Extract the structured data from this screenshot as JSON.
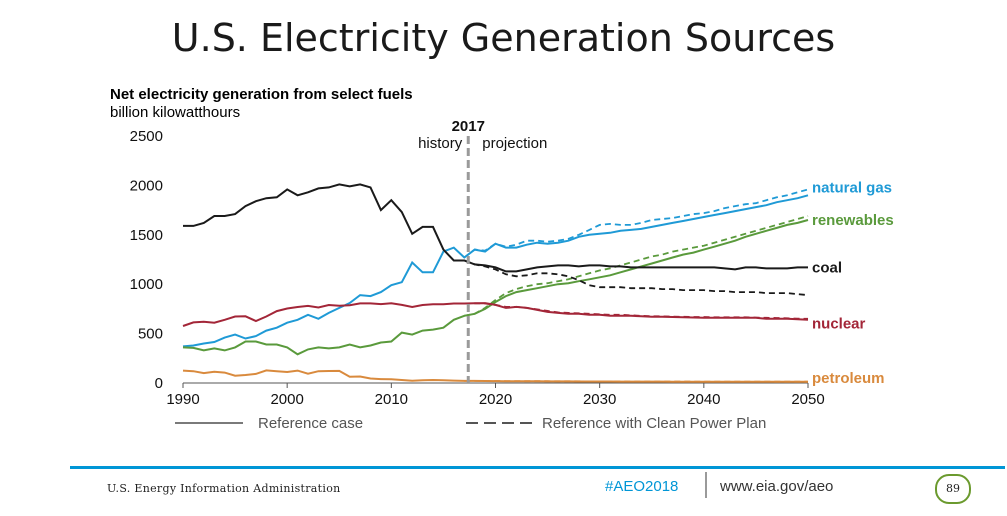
{
  "slide": {
    "title": "U.S. Electricity Generation Sources"
  },
  "footer": {
    "org": "U.S. Energy Information Administration",
    "hashtag": "#AEO2018",
    "url": "www.eia.gov/aeo",
    "page_number": "89",
    "colors": {
      "rule": "#0096d6",
      "badge": "#6b9a2e"
    }
  },
  "chart_data": {
    "type": "line",
    "title": "Net electricity generation from select fuels",
    "ylabel": "billion kilowatthours",
    "xlim": [
      1990,
      2050
    ],
    "ylim": [
      0,
      2500
    ],
    "x_ticks": [
      1990,
      2000,
      2010,
      2020,
      2030,
      2040,
      2050
    ],
    "y_ticks": [
      0,
      500,
      1000,
      1500,
      2000,
      2500
    ],
    "grid": false,
    "divider": {
      "year": 2017,
      "label": "2017",
      "left_label": "history",
      "right_label": "projection"
    },
    "legend": {
      "position": "bottom",
      "entries": [
        {
          "label": "Reference case",
          "style": "solid"
        },
        {
          "label": "Reference with Clean Power Plan",
          "style": "dashed"
        }
      ]
    },
    "series": [
      {
        "name": "natural gas",
        "color": "#1f9ad6",
        "x": [
          1990,
          1991,
          1992,
          1993,
          1994,
          1995,
          1996,
          1997,
          1998,
          1999,
          2000,
          2001,
          2002,
          2003,
          2004,
          2005,
          2006,
          2007,
          2008,
          2009,
          2010,
          2011,
          2012,
          2013,
          2014,
          2015,
          2016,
          2017,
          2018,
          2019,
          2020,
          2021,
          2022,
          2023,
          2024,
          2025,
          2026,
          2027,
          2028,
          2029,
          2030,
          2031,
          2032,
          2033,
          2034,
          2035,
          2036,
          2037,
          2038,
          2039,
          2040,
          2041,
          2042,
          2043,
          2044,
          2045,
          2046,
          2047,
          2048,
          2049,
          2050
        ],
        "reference": [
          370,
          380,
          400,
          415,
          460,
          490,
          450,
          475,
          530,
          560,
          610,
          640,
          690,
          650,
          710,
          760,
          810,
          890,
          880,
          920,
          990,
          1020,
          1220,
          1120,
          1120,
          1330,
          1370,
          1270,
          1350,
          1330,
          1410,
          1370,
          1370,
          1400,
          1420,
          1410,
          1420,
          1440,
          1480,
          1500,
          1510,
          1520,
          1540,
          1550,
          1560,
          1580,
          1600,
          1620,
          1640,
          1660,
          1680,
          1700,
          1720,
          1740,
          1760,
          1780,
          1800,
          1830,
          1850,
          1870,
          1900
        ],
        "clean_power_plan": [
          null,
          null,
          null,
          null,
          null,
          null,
          null,
          null,
          null,
          null,
          null,
          null,
          null,
          null,
          null,
          null,
          null,
          null,
          null,
          null,
          null,
          null,
          null,
          null,
          null,
          null,
          null,
          1270,
          1350,
          1340,
          1410,
          1380,
          1400,
          1440,
          1440,
          1430,
          1440,
          1460,
          1500,
          1550,
          1600,
          1610,
          1600,
          1600,
          1620,
          1650,
          1660,
          1670,
          1690,
          1710,
          1720,
          1740,
          1770,
          1790,
          1810,
          1820,
          1850,
          1880,
          1900,
          1930,
          1960
        ]
      },
      {
        "name": "renewables",
        "color": "#5a9a3c",
        "x": [
          1990,
          1991,
          1992,
          1993,
          1994,
          1995,
          1996,
          1997,
          1998,
          1999,
          2000,
          2001,
          2002,
          2003,
          2004,
          2005,
          2006,
          2007,
          2008,
          2009,
          2010,
          2011,
          2012,
          2013,
          2014,
          2015,
          2016,
          2017,
          2018,
          2019,
          2020,
          2021,
          2022,
          2023,
          2024,
          2025,
          2026,
          2027,
          2028,
          2029,
          2030,
          2031,
          2032,
          2033,
          2034,
          2035,
          2036,
          2037,
          2038,
          2039,
          2040,
          2041,
          2042,
          2043,
          2044,
          2045,
          2046,
          2047,
          2048,
          2049,
          2050
        ],
        "reference": [
          360,
          355,
          330,
          350,
          330,
          360,
          420,
          420,
          390,
          390,
          360,
          290,
          340,
          360,
          350,
          360,
          390,
          360,
          380,
          410,
          420,
          510,
          490,
          530,
          540,
          560,
          640,
          680,
          700,
          750,
          820,
          880,
          920,
          940,
          960,
          980,
          1000,
          1010,
          1030,
          1050,
          1070,
          1090,
          1120,
          1150,
          1180,
          1210,
          1240,
          1270,
          1300,
          1320,
          1350,
          1380,
          1410,
          1440,
          1480,
          1510,
          1540,
          1570,
          1600,
          1620,
          1650
        ],
        "clean_power_plan": [
          null,
          null,
          null,
          null,
          null,
          null,
          null,
          null,
          null,
          null,
          null,
          null,
          null,
          null,
          null,
          null,
          null,
          null,
          null,
          null,
          null,
          null,
          null,
          null,
          null,
          null,
          null,
          680,
          700,
          760,
          840,
          910,
          950,
          980,
          1000,
          1010,
          1030,
          1050,
          1080,
          1110,
          1140,
          1160,
          1190,
          1220,
          1250,
          1280,
          1300,
          1330,
          1350,
          1370,
          1390,
          1420,
          1450,
          1480,
          1510,
          1540,
          1570,
          1600,
          1630,
          1660,
          1690
        ]
      },
      {
        "name": "coal",
        "color": "#1a1a1a",
        "x": [
          1990,
          1991,
          1992,
          1993,
          1994,
          1995,
          1996,
          1997,
          1998,
          1999,
          2000,
          2001,
          2002,
          2003,
          2004,
          2005,
          2006,
          2007,
          2008,
          2009,
          2010,
          2011,
          2012,
          2013,
          2014,
          2015,
          2016,
          2017,
          2018,
          2019,
          2020,
          2021,
          2022,
          2023,
          2024,
          2025,
          2026,
          2027,
          2028,
          2029,
          2030,
          2031,
          2032,
          2033,
          2034,
          2035,
          2036,
          2037,
          2038,
          2039,
          2040,
          2041,
          2042,
          2043,
          2044,
          2045,
          2046,
          2047,
          2048,
          2049,
          2050
        ],
        "reference": [
          1590,
          1590,
          1620,
          1690,
          1690,
          1710,
          1790,
          1840,
          1870,
          1880,
          1960,
          1900,
          1930,
          1970,
          1980,
          2010,
          1990,
          2010,
          1980,
          1750,
          1850,
          1730,
          1510,
          1580,
          1580,
          1350,
          1240,
          1240,
          1200,
          1190,
          1170,
          1130,
          1130,
          1150,
          1170,
          1180,
          1190,
          1190,
          1180,
          1190,
          1190,
          1180,
          1180,
          1170,
          1170,
          1170,
          1170,
          1170,
          1170,
          1170,
          1170,
          1170,
          1160,
          1150,
          1170,
          1170,
          1160,
          1160,
          1160,
          1170,
          1170
        ],
        "clean_power_plan": [
          null,
          null,
          null,
          null,
          null,
          null,
          null,
          null,
          null,
          null,
          null,
          null,
          null,
          null,
          null,
          null,
          null,
          null,
          null,
          null,
          null,
          null,
          null,
          null,
          null,
          null,
          null,
          1240,
          1200,
          1180,
          1150,
          1100,
          1080,
          1090,
          1110,
          1110,
          1100,
          1080,
          1040,
          990,
          970,
          970,
          970,
          960,
          960,
          960,
          950,
          950,
          940,
          940,
          940,
          930,
          930,
          920,
          920,
          920,
          910,
          910,
          910,
          900,
          890
        ]
      },
      {
        "name": "nuclear",
        "color": "#a32638",
        "x": [
          1990,
          1991,
          1992,
          1993,
          1994,
          1995,
          1996,
          1997,
          1998,
          1999,
          2000,
          2001,
          2002,
          2003,
          2004,
          2005,
          2006,
          2007,
          2008,
          2009,
          2010,
          2011,
          2012,
          2013,
          2014,
          2015,
          2016,
          2017,
          2018,
          2019,
          2020,
          2021,
          2022,
          2023,
          2024,
          2025,
          2026,
          2027,
          2028,
          2029,
          2030,
          2031,
          2032,
          2033,
          2034,
          2035,
          2036,
          2037,
          2038,
          2039,
          2040,
          2041,
          2042,
          2043,
          2044,
          2045,
          2046,
          2047,
          2048,
          2049,
          2050
        ],
        "reference": [
          577,
          613,
          619,
          610,
          640,
          673,
          675,
          628,
          673,
          728,
          754,
          769,
          780,
          764,
          789,
          782,
          787,
          806,
          806,
          799,
          807,
          790,
          769,
          789,
          797,
          797,
          805,
          805,
          807,
          809,
          790,
          760,
          770,
          760,
          740,
          720,
          710,
          700,
          700,
          690,
          690,
          680,
          680,
          680,
          675,
          670,
          670,
          668,
          665,
          663,
          660,
          660,
          660,
          660,
          660,
          660,
          650,
          650,
          650,
          645,
          640
        ],
        "clean_power_plan": [
          null,
          null,
          null,
          null,
          null,
          null,
          null,
          null,
          null,
          null,
          null,
          null,
          null,
          null,
          null,
          null,
          null,
          null,
          null,
          null,
          null,
          null,
          null,
          null,
          null,
          null,
          null,
          805,
          807,
          805,
          790,
          770,
          770,
          760,
          745,
          730,
          715,
          710,
          705,
          700,
          695,
          690,
          690,
          685,
          680,
          675,
          675,
          672,
          670,
          668,
          668,
          665,
          665,
          665,
          665,
          662,
          660,
          658,
          655,
          652,
          650
        ]
      },
      {
        "name": "petroleum",
        "color": "#d98a3d",
        "x": [
          1990,
          1991,
          1992,
          1993,
          1994,
          1995,
          1996,
          1997,
          1998,
          1999,
          2000,
          2001,
          2002,
          2003,
          2004,
          2005,
          2006,
          2007,
          2008,
          2009,
          2010,
          2011,
          2012,
          2013,
          2014,
          2015,
          2016,
          2017,
          2018,
          2019,
          2020,
          2021,
          2022,
          2023,
          2024,
          2025,
          2026,
          2027,
          2028,
          2029,
          2030,
          2031,
          2032,
          2033,
          2034,
          2035,
          2036,
          2037,
          2038,
          2039,
          2040,
          2041,
          2042,
          2043,
          2044,
          2045,
          2046,
          2047,
          2048,
          2049,
          2050
        ],
        "reference": [
          126,
          119,
          100,
          113,
          105,
          74,
          81,
          92,
          128,
          118,
          111,
          125,
          94,
          119,
          121,
          122,
          64,
          66,
          46,
          39,
          37,
          30,
          23,
          27,
          30,
          28,
          24,
          21,
          21,
          20,
          19,
          18,
          18,
          17,
          17,
          16,
          16,
          16,
          15,
          15,
          15,
          15,
          14,
          14,
          14,
          14,
          14,
          13,
          13,
          13,
          13,
          13,
          13,
          13,
          12,
          12,
          12,
          12,
          12,
          12,
          12
        ],
        "clean_power_plan": [
          null,
          null,
          null,
          null,
          null,
          null,
          null,
          null,
          null,
          null,
          null,
          null,
          null,
          null,
          null,
          null,
          null,
          null,
          null,
          null,
          null,
          null,
          null,
          null,
          null,
          null,
          null,
          21,
          21,
          20,
          20,
          19,
          19,
          18,
          18,
          18,
          17,
          17,
          17,
          16,
          16,
          16,
          16,
          15,
          15,
          15,
          15,
          15,
          15,
          14,
          14,
          14,
          14,
          14,
          14,
          14,
          14,
          13,
          13,
          13,
          13
        ]
      }
    ]
  }
}
